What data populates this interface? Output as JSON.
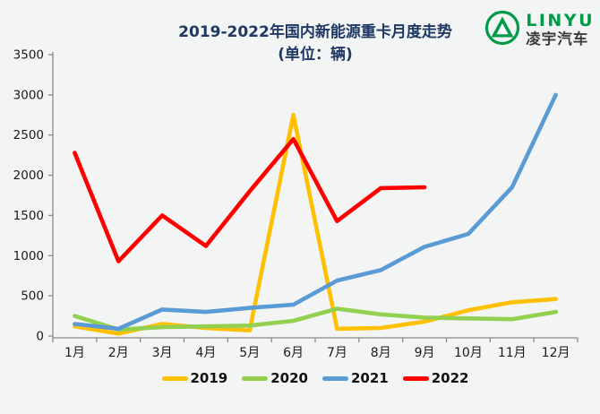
{
  "header": {
    "title_line1": "2019-2022年国内新能源重卡月度走势",
    "title_line2": "(单位：辆)"
  },
  "logo": {
    "brand_en": "LINYU",
    "brand_cn": "凌宇汽车",
    "brand_color": "#009a48"
  },
  "chart_data": {
    "type": "line",
    "title": "2019-2022年国内新能源重卡月度走势",
    "subtitle": "(单位：辆)",
    "categories": [
      "1月",
      "2月",
      "3月",
      "4月",
      "5月",
      "6月",
      "7月",
      "8月",
      "9月",
      "10月",
      "11月",
      "12月"
    ],
    "series": [
      {
        "name": "2019",
        "color": "#FFC000",
        "values": [
          120,
          30,
          150,
          100,
          70,
          2750,
          90,
          100,
          180,
          320,
          420,
          460
        ]
      },
      {
        "name": "2020",
        "color": "#92D050",
        "values": [
          250,
          80,
          110,
          120,
          130,
          190,
          340,
          270,
          230,
          220,
          210,
          300
        ]
      },
      {
        "name": "2021",
        "color": "#5B9BD5",
        "values": [
          150,
          90,
          330,
          300,
          350,
          390,
          690,
          820,
          1110,
          1270,
          1850,
          3000
        ]
      },
      {
        "name": "2022",
        "color": "#FF0000",
        "values": [
          2280,
          930,
          1500,
          1120,
          1800,
          2450,
          1430,
          1840,
          1850,
          null,
          null,
          null
        ]
      }
    ],
    "ylim": [
      0,
      3500
    ],
    "yticks": [
      0,
      500,
      1000,
      1500,
      2000,
      2500,
      3000,
      3500
    ],
    "grid": false,
    "legend_position": "bottom",
    "axis_color": "#8a8a8a",
    "tick_label_color": "#1a1a1a"
  }
}
